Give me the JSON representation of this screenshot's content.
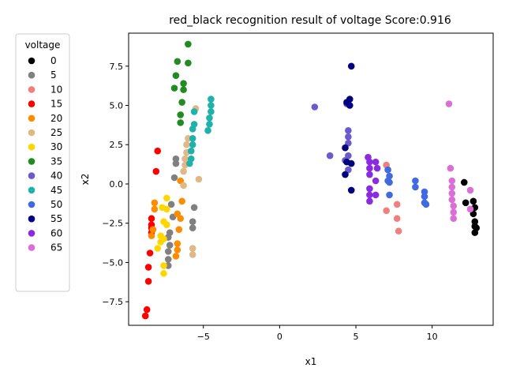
{
  "chart_data": {
    "type": "scatter",
    "title": "red_black recognition result of voltage Score:0.916",
    "xlabel": "x1",
    "ylabel": "x2",
    "xlim": [
      -9.9,
      14.0
    ],
    "ylim": [
      -9.0,
      9.6
    ],
    "xticks": [
      -5,
      0,
      5,
      10
    ],
    "yticks": [
      -7.5,
      -5.0,
      -2.5,
      0.0,
      2.5,
      5.0,
      7.5
    ],
    "xtick_labels": [
      "−5",
      "0",
      "5",
      "10"
    ],
    "ytick_labels": [
      "−7.5",
      "−5.0",
      "−2.5",
      "0.0",
      "2.5",
      "5.0",
      "7.5"
    ],
    "grid": false,
    "legend": {
      "title": "voltage",
      "position": "outside-left"
    },
    "series": [
      {
        "name": "0",
        "color": "#000000",
        "points": [
          [
            12.1,
            0.1
          ],
          [
            12.2,
            -1.2
          ],
          [
            12.7,
            -1.1
          ],
          [
            12.8,
            -1.5
          ],
          [
            12.7,
            -1.9
          ],
          [
            12.8,
            -2.4
          ],
          [
            12.8,
            -2.7
          ],
          [
            12.9,
            -2.8
          ],
          [
            12.8,
            -3.1
          ]
        ]
      },
      {
        "name": "5",
        "color": "#808080",
        "points": [
          [
            -6.8,
            1.6
          ],
          [
            -6.8,
            1.3
          ],
          [
            -6.9,
            0.4
          ],
          [
            -7.1,
            -1.3
          ],
          [
            -5.6,
            -1.5
          ],
          [
            -7.0,
            -2.1
          ],
          [
            -5.7,
            -2.4
          ],
          [
            -5.7,
            -2.8
          ],
          [
            -7.2,
            -3.1
          ],
          [
            -7.3,
            -3.4
          ],
          [
            -7.2,
            -3.9
          ],
          [
            -7.3,
            -4.3
          ],
          [
            -7.3,
            -4.8
          ],
          [
            -7.3,
            -5.2
          ]
        ]
      },
      {
        "name": "10",
        "color": "#f08080",
        "points": [
          [
            7.0,
            1.2
          ],
          [
            7.7,
            -1.3
          ],
          [
            7.0,
            -1.7
          ],
          [
            7.7,
            -2.2
          ],
          [
            7.8,
            -3.0
          ]
        ]
      },
      {
        "name": "15",
        "color": "#ff0000",
        "points": [
          [
            -8.0,
            2.1
          ],
          [
            -8.1,
            0.8
          ],
          [
            -8.4,
            -2.2
          ],
          [
            -8.4,
            -2.6
          ],
          [
            -8.4,
            -2.8
          ],
          [
            -8.4,
            -3.1
          ],
          [
            -8.5,
            -4.4
          ],
          [
            -8.6,
            -5.3
          ],
          [
            -8.6,
            -6.2
          ],
          [
            -8.7,
            -8.0
          ],
          [
            -8.8,
            -8.4
          ]
        ]
      },
      {
        "name": "20",
        "color": "#ff8c00",
        "points": [
          [
            -6.5,
            0.2
          ],
          [
            -8.2,
            -1.2
          ],
          [
            -8.2,
            -1.6
          ],
          [
            -6.4,
            -1.1
          ],
          [
            -6.7,
            -1.9
          ],
          [
            -6.5,
            -2.2
          ],
          [
            -8.3,
            -2.9
          ],
          [
            -6.6,
            -2.9
          ],
          [
            -8.4,
            -3.3
          ],
          [
            -6.7,
            -3.8
          ],
          [
            -6.7,
            -4.2
          ],
          [
            -6.8,
            -4.6
          ]
        ]
      },
      {
        "name": "25",
        "color": "#deb887",
        "points": [
          [
            -5.5,
            4.8
          ],
          [
            -6.0,
            2.9
          ],
          [
            -6.1,
            2.5
          ],
          [
            -6.1,
            2.0
          ],
          [
            -6.2,
            1.6
          ],
          [
            -6.2,
            1.2
          ],
          [
            -6.3,
            0.8
          ],
          [
            -5.3,
            0.3
          ],
          [
            -6.3,
            -0.1
          ],
          [
            -5.7,
            -4.1
          ],
          [
            -5.7,
            -4.5
          ]
        ]
      },
      {
        "name": "30",
        "color": "#ffd700",
        "points": [
          [
            -7.4,
            -0.9
          ],
          [
            -7.7,
            -1.5
          ],
          [
            -7.4,
            -1.6
          ],
          [
            -7.6,
            -2.4
          ],
          [
            -7.4,
            -2.6
          ],
          [
            -7.8,
            -3.3
          ],
          [
            -7.6,
            -3.5
          ],
          [
            -7.8,
            -3.7
          ],
          [
            -8.0,
            -4.1
          ],
          [
            -7.6,
            -5.2
          ],
          [
            -7.6,
            -5.7
          ]
        ]
      },
      {
        "name": "35",
        "color": "#228b22",
        "points": [
          [
            -6.0,
            8.9
          ],
          [
            -6.7,
            7.8
          ],
          [
            -6.0,
            7.7
          ],
          [
            -6.8,
            6.9
          ],
          [
            -6.3,
            6.4
          ],
          [
            -6.9,
            6.1
          ],
          [
            -6.3,
            6.0
          ],
          [
            -6.4,
            5.2
          ],
          [
            -6.5,
            4.4
          ],
          [
            -6.5,
            3.9
          ]
        ]
      },
      {
        "name": "40",
        "color": "#6a5acd",
        "points": [
          [
            2.3,
            4.9
          ],
          [
            4.4,
            5.1
          ],
          [
            4.5,
            3.4
          ],
          [
            4.5,
            3.0
          ],
          [
            4.5,
            2.6
          ],
          [
            3.3,
            1.8
          ],
          [
            4.5,
            1.8
          ],
          [
            4.3,
            1.5
          ],
          [
            4.5,
            0.9
          ]
        ]
      },
      {
        "name": "45",
        "color": "#20b2aa",
        "points": [
          [
            -4.5,
            5.4
          ],
          [
            -4.5,
            5.0
          ],
          [
            -4.5,
            4.6
          ],
          [
            -5.6,
            4.6
          ],
          [
            -4.6,
            4.2
          ],
          [
            -5.6,
            3.8
          ],
          [
            -4.6,
            3.8
          ],
          [
            -5.7,
            3.5
          ],
          [
            -4.7,
            3.4
          ],
          [
            -5.7,
            2.9
          ],
          [
            -5.7,
            2.5
          ],
          [
            -5.8,
            2.1
          ],
          [
            -5.8,
            1.6
          ],
          [
            -5.9,
            1.3
          ]
        ]
      },
      {
        "name": "50",
        "color": "#4169e1",
        "points": [
          [
            7.1,
            0.9
          ],
          [
            7.2,
            0.5
          ],
          [
            7.1,
            0.2
          ],
          [
            7.2,
            0.1
          ],
          [
            8.9,
            0.2
          ],
          [
            9.5,
            -0.5
          ],
          [
            9.5,
            -0.8
          ],
          [
            8.9,
            -0.2
          ],
          [
            7.2,
            -0.7
          ],
          [
            9.6,
            -1.3
          ],
          [
            9.5,
            -1.2
          ]
        ]
      },
      {
        "name": "55",
        "color": "#000080",
        "points": [
          [
            4.7,
            7.5
          ],
          [
            4.6,
            5.4
          ],
          [
            4.4,
            5.2
          ],
          [
            4.6,
            5.0
          ],
          [
            4.3,
            2.3
          ],
          [
            4.4,
            1.4
          ],
          [
            4.7,
            1.3
          ],
          [
            4.3,
            0.6
          ],
          [
            4.7,
            -0.4
          ]
        ]
      },
      {
        "name": "60",
        "color": "#8a2be2",
        "points": [
          [
            5.8,
            1.7
          ],
          [
            5.9,
            1.4
          ],
          [
            6.3,
            1.4
          ],
          [
            5.9,
            1.0
          ],
          [
            6.4,
            1.0
          ],
          [
            5.9,
            0.6
          ],
          [
            6.3,
            0.2
          ],
          [
            5.9,
            -0.3
          ],
          [
            5.9,
            -0.7
          ],
          [
            6.3,
            -0.7
          ],
          [
            5.9,
            -1.1
          ]
        ]
      },
      {
        "name": "65",
        "color": "#da70d6",
        "points": [
          [
            11.1,
            5.1
          ],
          [
            11.2,
            1.0
          ],
          [
            11.3,
            0.2
          ],
          [
            11.3,
            -0.2
          ],
          [
            11.3,
            -0.6
          ],
          [
            12.5,
            -0.4
          ],
          [
            11.3,
            -1.0
          ],
          [
            11.4,
            -1.4
          ],
          [
            11.4,
            -1.8
          ],
          [
            11.4,
            -2.2
          ],
          [
            12.5,
            -1.6
          ]
        ]
      }
    ]
  }
}
